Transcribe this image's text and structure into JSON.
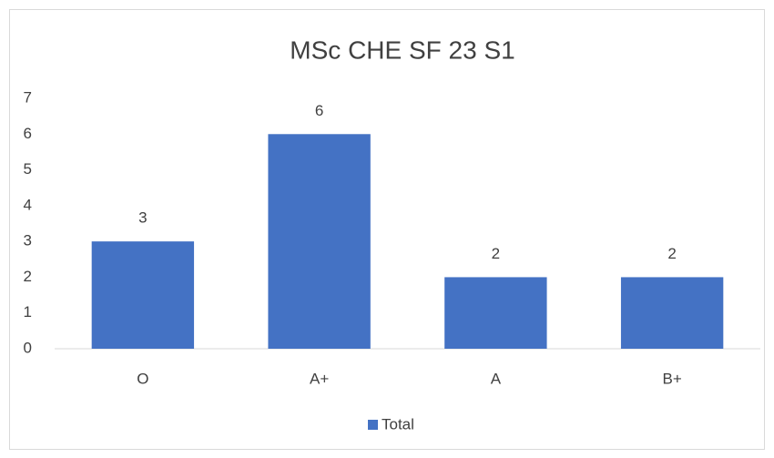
{
  "chart_data": {
    "type": "bar",
    "title": "MSc CHE SF 23 S1",
    "categories": [
      "O",
      "A+",
      "A",
      "B+"
    ],
    "values": [
      3,
      6,
      2,
      2
    ],
    "color": "#4472c4",
    "series_name": "Total",
    "ylim": [
      0,
      7
    ],
    "yticks": [
      0,
      1,
      2,
      3,
      4,
      5,
      6,
      7
    ],
    "grid": false,
    "legend": "bottom"
  }
}
